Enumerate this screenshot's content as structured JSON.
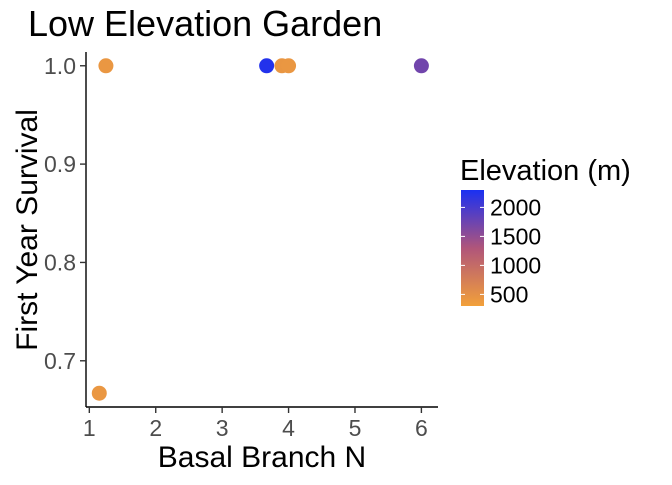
{
  "chart_data": {
    "type": "scatter",
    "title": "Low Elevation Garden",
    "xlabel": "Basal Branch N",
    "ylabel": "First Year Survival",
    "xlim": [
      0.95,
      6.25
    ],
    "ylim": [
      0.653,
      1.014
    ],
    "x_ticks": [
      1,
      2,
      3,
      4,
      5,
      6
    ],
    "y_ticks": [
      0.7,
      0.8,
      0.9,
      1.0
    ],
    "x_tick_labels": [
      "1",
      "2",
      "3",
      "4",
      "5",
      "6"
    ],
    "y_tick_labels": [
      "0.7",
      "0.8",
      "0.9",
      "1.0"
    ],
    "grid": false,
    "legend": {
      "title": "Elevation (m)",
      "placement": "right",
      "type": "colorbar",
      "range": [
        300,
        2300
      ],
      "ticks": [
        500,
        1000,
        1500,
        2000
      ],
      "tick_labels": [
        "500",
        "1000",
        "1500",
        "2000"
      ],
      "low_color": "#f2a03a",
      "mid_color": "#b0557a",
      "high_color": "#1a30f2"
    },
    "points": [
      {
        "x": 1.15,
        "y": 0.667,
        "elevation": 420
      },
      {
        "x": 1.25,
        "y": 1.0,
        "elevation": 420
      },
      {
        "x": 3.67,
        "y": 1.0,
        "elevation": 2250
      },
      {
        "x": 3.9,
        "y": 1.0,
        "elevation": 430
      },
      {
        "x": 4.0,
        "y": 1.0,
        "elevation": 420
      },
      {
        "x": 6.0,
        "y": 1.0,
        "elevation": 1720
      }
    ]
  }
}
